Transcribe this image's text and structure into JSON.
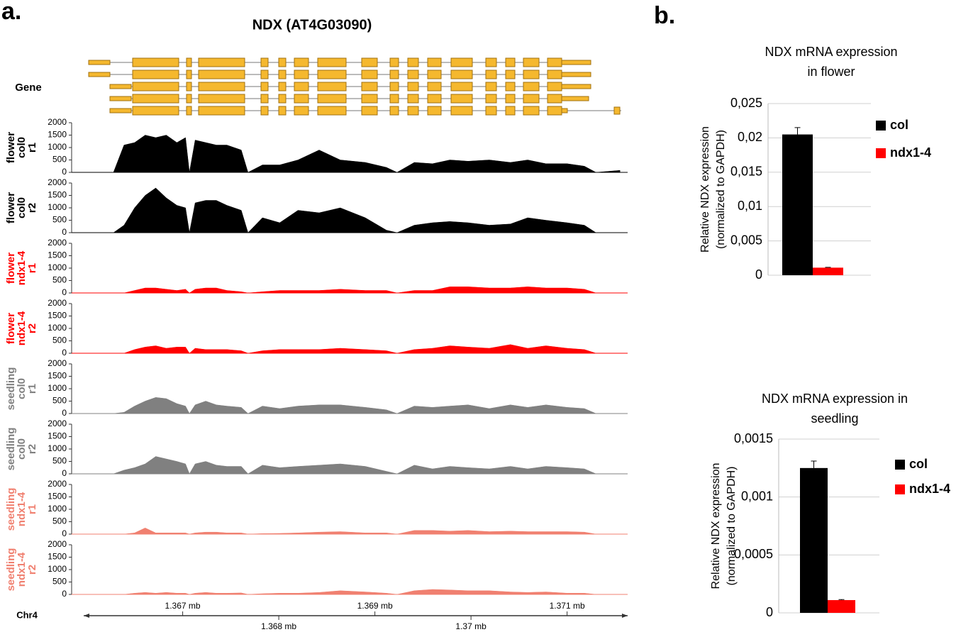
{
  "panel_labels": [
    "a.",
    "b."
  ],
  "chart_data": [
    {
      "type": "coverage",
      "title": "NDX (AT4G03090)",
      "gene_label": "Gene",
      "chromosome": "Chr4",
      "xlim": [
        1.36597,
        1.37163
      ],
      "xticks": [
        {
          "value": 1.367,
          "label": "1.367 mb"
        },
        {
          "value": 1.368,
          "label": "1.368 mb"
        },
        {
          "value": 1.369,
          "label": "1.369 mb"
        },
        {
          "value": 1.37,
          "label": "1.37 mb"
        },
        {
          "value": 1.371,
          "label": "1.371 mb"
        }
      ],
      "ylim": [
        0,
        2000
      ],
      "yticks": [
        0,
        500,
        1000,
        1500,
        2000
      ],
      "x": [
        1.3662,
        1.36628,
        1.36639,
        1.3665,
        1.36661,
        1.36672,
        1.36683,
        1.36694,
        1.36703,
        1.36707,
        1.36713,
        1.36724,
        1.36735,
        1.36746,
        1.36761,
        1.36768,
        1.36783,
        1.36801,
        1.3682,
        1.36842,
        1.36864,
        1.3689,
        1.36912,
        1.36923,
        1.36941,
        1.3696,
        1.36978,
        1.36997,
        1.37019,
        1.37041,
        1.37059,
        1.37078,
        1.371,
        1.37118,
        1.3713,
        1.37155
      ],
      "series": [
        {
          "name": [
            "flower",
            "col0",
            "r1"
          ],
          "color": "#000000",
          "values": [
            0,
            0,
            1100,
            1200,
            1500,
            1400,
            1500,
            1200,
            1400,
            0,
            1300,
            1200,
            1100,
            1100,
            900,
            0,
            300,
            300,
            500,
            900,
            500,
            400,
            200,
            0,
            400,
            350,
            500,
            450,
            500,
            400,
            500,
            350,
            350,
            250,
            0,
            80
          ]
        },
        {
          "name": [
            "flower",
            "col0",
            "r2"
          ],
          "color": "#000000",
          "values": [
            0,
            0,
            300,
            1000,
            1500,
            1800,
            1400,
            1100,
            1000,
            0,
            1200,
            1300,
            1300,
            1100,
            900,
            0,
            600,
            400,
            900,
            800,
            1000,
            600,
            100,
            0,
            300,
            400,
            450,
            400,
            300,
            350,
            600,
            500,
            400,
            300,
            0,
            0
          ]
        },
        {
          "name": [
            "flower",
            "ndx1-4",
            "r1"
          ],
          "color": "#ff0000",
          "values": [
            0,
            0,
            0,
            100,
            200,
            200,
            150,
            100,
            150,
            0,
            150,
            200,
            200,
            100,
            50,
            0,
            50,
            100,
            100,
            100,
            150,
            100,
            100,
            0,
            100,
            100,
            250,
            250,
            200,
            200,
            250,
            200,
            200,
            150,
            0,
            0
          ]
        },
        {
          "name": [
            "flower",
            "ndx1-4",
            "r2"
          ],
          "color": "#ff0000",
          "values": [
            0,
            0,
            0,
            150,
            250,
            300,
            200,
            250,
            250,
            0,
            200,
            150,
            150,
            150,
            100,
            0,
            100,
            150,
            150,
            150,
            200,
            150,
            100,
            0,
            150,
            200,
            300,
            250,
            200,
            350,
            200,
            300,
            200,
            150,
            0,
            0
          ]
        },
        {
          "name": [
            "seedling",
            "col0",
            "r1"
          ],
          "color": "#808080",
          "values": [
            0,
            0,
            50,
            300,
            500,
            650,
            600,
            400,
            300,
            0,
            350,
            500,
            350,
            300,
            250,
            0,
            300,
            200,
            300,
            350,
            350,
            250,
            150,
            0,
            300,
            250,
            300,
            350,
            200,
            350,
            250,
            350,
            250,
            200,
            0,
            0
          ]
        },
        {
          "name": [
            "seedling",
            "col0",
            "r2"
          ],
          "color": "#808080",
          "values": [
            0,
            0,
            150,
            250,
            400,
            700,
            600,
            500,
            400,
            0,
            400,
            500,
            350,
            300,
            300,
            0,
            350,
            250,
            300,
            350,
            400,
            300,
            100,
            0,
            350,
            200,
            300,
            250,
            200,
            300,
            200,
            300,
            250,
            200,
            0,
            0
          ]
        },
        {
          "name": [
            "seedling",
            "ndx1-4",
            "r1"
          ],
          "color": "#f08070",
          "values": [
            0,
            0,
            0,
            50,
            250,
            50,
            50,
            50,
            50,
            0,
            50,
            80,
            80,
            50,
            50,
            0,
            20,
            30,
            50,
            80,
            100,
            50,
            50,
            0,
            150,
            150,
            120,
            150,
            100,
            120,
            100,
            100,
            100,
            80,
            0,
            0
          ]
        },
        {
          "name": [
            "seedling",
            "ndx1-4",
            "r2"
          ],
          "color": "#f08070",
          "values": [
            0,
            0,
            0,
            50,
            80,
            50,
            80,
            50,
            50,
            0,
            50,
            80,
            50,
            50,
            60,
            0,
            30,
            50,
            50,
            80,
            150,
            100,
            50,
            0,
            150,
            200,
            180,
            150,
            150,
            100,
            80,
            100,
            50,
            50,
            0,
            0
          ]
        }
      ]
    },
    {
      "type": "bar",
      "title": [
        "NDX mRNA expression",
        "in flower"
      ],
      "ylabel": [
        "Relative NDX expression",
        "(normalized to GAPDH)"
      ],
      "ylim": [
        0,
        0.025
      ],
      "yticks": [
        0,
        {
          "value": 0.005,
          "label": "0,005"
        },
        {
          "value": 0.01,
          "label": "0,01"
        },
        {
          "value": 0.015,
          "label": "0,015"
        },
        {
          "value": 0.02,
          "label": "0,02"
        },
        {
          "value": 0.025,
          "label": "0,025"
        }
      ],
      "grid": true,
      "series": [
        {
          "name": "col",
          "color": "#000000",
          "values": [
            0.0205
          ],
          "errors": [
            0.001
          ]
        },
        {
          "name": "ndx1-4",
          "color": "#ff0000",
          "values": [
            0.0011
          ],
          "errors": [
            5e-05
          ]
        }
      ]
    },
    {
      "type": "bar",
      "title": [
        "NDX mRNA expression in",
        "seedling"
      ],
      "ylabel": [
        "Relative NDX expression",
        "(normalized to GAPDH)"
      ],
      "ylim": [
        0,
        0.0015
      ],
      "yticks": [
        0,
        {
          "value": 0.0005,
          "label": "0,0005"
        },
        {
          "value": 0.001,
          "label": "0,001"
        },
        {
          "value": 0.0015,
          "label": "0,0015"
        }
      ],
      "grid": true,
      "series": [
        {
          "name": "col",
          "color": "#000000",
          "values": [
            0.00125
          ],
          "errors": [
            6e-05
          ]
        },
        {
          "name": "ndx1-4",
          "color": "#ff0000",
          "values": [
            0.00011
          ],
          "errors": [
            5e-06
          ]
        }
      ]
    }
  ]
}
